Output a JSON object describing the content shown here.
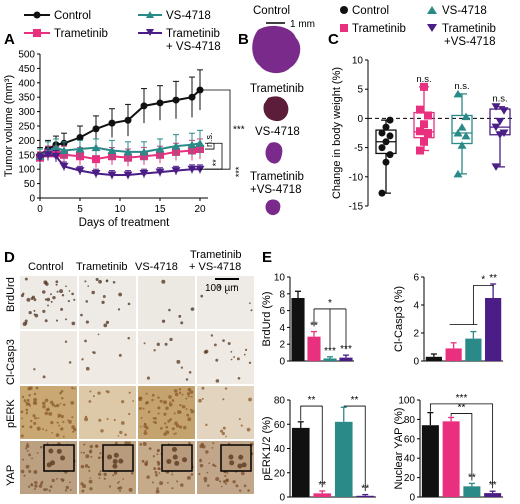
{
  "colors": {
    "control": "#111111",
    "trametinib": "#e8307f",
    "vs4718": "#2a8a87",
    "combo": "#4b1d86",
    "tissue": "#7a2a8a",
    "ihc_bg": "#ece7df"
  },
  "panels": {
    "A": "A",
    "B": "B",
    "C": "C",
    "D": "D",
    "E": "E"
  },
  "legend": {
    "control": "Control",
    "trametinib": "Trametinib",
    "vs4718": "VS-4718",
    "combo_line1": "Trametinib",
    "combo_line2": "+ VS-4718"
  },
  "legend_c": {
    "control": "Control",
    "trametinib": "Trametinib",
    "vs4718": "VS-4718",
    "combo_line1": "Trametinib",
    "combo_line2": "+VS-4718"
  },
  "panel_b": {
    "labels": [
      "Control",
      "Trametinib",
      "VS-4718",
      "Trametinib",
      "+VS-4718"
    ],
    "scale": "1 mm"
  },
  "panel_d": {
    "columns": [
      "Control",
      "Trametinib",
      "VS-4718",
      "Trametinib",
      "+ VS-4718"
    ],
    "rows": [
      "BrdUrd",
      "Cl-Casp3",
      "pERK",
      "YAP"
    ],
    "scale": "100 µm"
  },
  "chart_data": [
    {
      "id": "A",
      "type": "line",
      "xlabel": "Days of treatment",
      "ylabel": "Tumor volume (mm³)",
      "xlim": [
        0,
        21
      ],
      "ylim": [
        0,
        500
      ],
      "xticks": [
        0,
        5,
        10,
        15,
        20
      ],
      "yticks": [
        0,
        50,
        100,
        150,
        200,
        250,
        300,
        350,
        400,
        450,
        500
      ],
      "x": [
        0,
        1,
        2,
        3,
        5,
        7,
        9,
        11,
        13,
        15,
        17,
        19,
        20
      ],
      "series": [
        {
          "name": "Control",
          "key": "control",
          "values": [
            150,
            170,
            185,
            190,
            210,
            240,
            260,
            270,
            320,
            330,
            340,
            350,
            375
          ],
          "err": [
            25,
            30,
            30,
            35,
            40,
            45,
            50,
            55,
            60,
            60,
            65,
            70,
            70
          ]
        },
        {
          "name": "Trametinib",
          "key": "trametinib",
          "values": [
            140,
            155,
            155,
            150,
            145,
            135,
            145,
            140,
            145,
            150,
            160,
            165,
            170
          ],
          "err": [
            20,
            25,
            25,
            30,
            30,
            30,
            30,
            30,
            30,
            30,
            30,
            35,
            35
          ]
        },
        {
          "name": "VS-4718",
          "key": "vs4718",
          "values": [
            145,
            165,
            175,
            165,
            170,
            175,
            165,
            160,
            160,
            170,
            180,
            185,
            190
          ],
          "err": [
            25,
            30,
            30,
            30,
            30,
            30,
            35,
            35,
            35,
            35,
            40,
            40,
            45
          ]
        },
        {
          "name": "Trametinib + VS-4718",
          "key": "combo",
          "values": [
            140,
            150,
            145,
            110,
            95,
            85,
            80,
            80,
            85,
            90,
            95,
            100,
            100
          ],
          "err": [
            15,
            20,
            20,
            15,
            15,
            15,
            15,
            15,
            15,
            15,
            15,
            15,
            15
          ]
        }
      ],
      "annotations": [
        "***",
        "n.s.",
        "**",
        "***"
      ]
    },
    {
      "id": "C",
      "type": "box",
      "ylabel": "Change in body weight (%)",
      "ylim": [
        -15,
        10
      ],
      "yticks": [
        -15,
        -10,
        -5,
        0,
        5,
        10
      ],
      "groups": [
        {
          "key": "control",
          "min": -12.8,
          "q1": -6,
          "median": -4,
          "q3": -2,
          "max": -0.3,
          "points": [
            -12.8,
            -7.5,
            -6.2,
            -5,
            -4,
            -3,
            -2.5,
            -1.5,
            -0.3
          ]
        },
        {
          "key": "trametinib",
          "min": -5.5,
          "q1": -3.3,
          "median": -2.3,
          "q3": 1,
          "max": 5.4,
          "points": [
            -5.5,
            -4,
            -2.5,
            -2.2,
            -1,
            0.5,
            1.5,
            5.4
          ]
        },
        {
          "key": "vs4718",
          "min": -9.5,
          "q1": -4.3,
          "median": -2.5,
          "q3": 0.5,
          "max": 4.2,
          "points": [
            -9.5,
            -4.6,
            -3,
            -2.5,
            -1.5,
            0.3,
            4.2
          ]
        },
        {
          "key": "combo",
          "min": -8.3,
          "q1": -2.8,
          "median": -1.5,
          "q3": 1.6,
          "max": 2,
          "points": [
            -8.3,
            -2.8,
            -2.5,
            -1.5,
            -0.5,
            1.3,
            2
          ]
        }
      ],
      "annotations": [
        "n.s.",
        "n.s.",
        "n.s."
      ]
    },
    {
      "id": "E1",
      "type": "bar",
      "ylabel": "BrdUrd (%)",
      "ylim": [
        0,
        10
      ],
      "yticks": [
        0,
        2,
        4,
        6,
        8,
        10
      ],
      "values": [
        7.5,
        2.9,
        0.3,
        0.4
      ],
      "err": [
        0.8,
        0.6,
        0.2,
        0.3
      ],
      "stars": [
        "",
        "**",
        "***",
        "***"
      ],
      "bracket": "*"
    },
    {
      "id": "E2",
      "type": "bar",
      "ylabel": "Cl-Casp3 (%)",
      "ylim": [
        0,
        6
      ],
      "yticks": [
        0,
        2,
        4,
        6
      ],
      "values": [
        0.3,
        0.9,
        1.6,
        4.5
      ],
      "err": [
        0.2,
        0.4,
        0.5,
        1.0
      ],
      "stars": [
        "",
        "",
        "",
        "**"
      ],
      "bracket": "*"
    },
    {
      "id": "E3",
      "type": "bar",
      "ylabel": "pERK1/2 (%)",
      "ylim": [
        0,
        80
      ],
      "yticks": [
        0,
        20,
        40,
        60,
        80
      ],
      "values": [
        57,
        3,
        62,
        1
      ],
      "err": [
        5,
        2,
        12,
        1
      ],
      "stars": [
        "",
        "**",
        "",
        "**"
      ],
      "brackets": [
        "**",
        "**"
      ]
    },
    {
      "id": "E4",
      "type": "bar",
      "ylabel": "Nuclear YAP (%)",
      "ylim": [
        0,
        100
      ],
      "yticks": [
        0,
        20,
        40,
        60,
        80,
        100
      ],
      "values": [
        74,
        78,
        11,
        4
      ],
      "err": [
        13,
        4,
        3,
        2
      ],
      "stars": [
        "",
        "",
        "**",
        "**"
      ],
      "brackets": [
        "**",
        "***"
      ]
    }
  ]
}
